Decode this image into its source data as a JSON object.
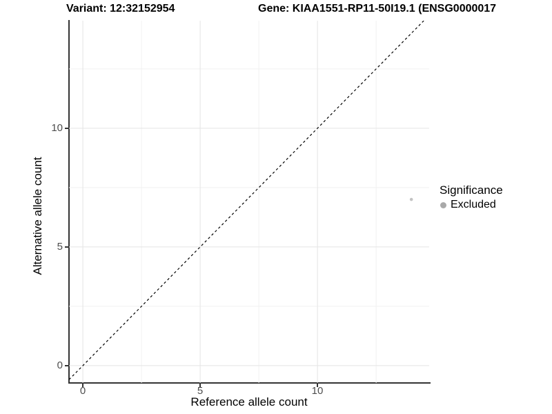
{
  "chart_data": {
    "type": "scatter",
    "titles": {
      "left": "Variant: 12:32152954",
      "right": "Gene: KIAA1551-RP11-50I19.1 (ENSG0000017"
    },
    "xlabel": "Reference allele count",
    "ylabel": "Alternative allele count",
    "xlim": [
      -0.59,
      14.76
    ],
    "ylim": [
      -0.73,
      14.53
    ],
    "x_ticks": {
      "values": [
        0,
        5,
        10
      ],
      "labels": [
        "0",
        "5",
        "10"
      ]
    },
    "y_ticks": {
      "values": [
        0,
        5,
        10
      ],
      "labels": [
        "0",
        "5",
        "10"
      ]
    },
    "grid": {
      "major": [
        0,
        5,
        10
      ],
      "minor": [
        2.5,
        7.5,
        12.5
      ],
      "major_color": "#e4e4e4",
      "minor_color": "#f1f1f1"
    },
    "identity_line": {
      "style": "dashed",
      "color": "#000000",
      "slope": 1,
      "intercept": 0
    },
    "points": [
      {
        "x": 14,
        "y": 7,
        "significance": "Excluded",
        "color": "#c3c3c3",
        "radius": 2.3
      }
    ],
    "legend": {
      "title": "Significance",
      "position": "right",
      "items": [
        {
          "label": "Excluded",
          "color": "#a9a9a9",
          "diameter": 9
        }
      ]
    },
    "colors": {
      "background": "#ffffff",
      "axis_line": "#333333",
      "tick_mark": "#333333",
      "tick_label": "#4d4d4d",
      "text": "#000000"
    }
  }
}
